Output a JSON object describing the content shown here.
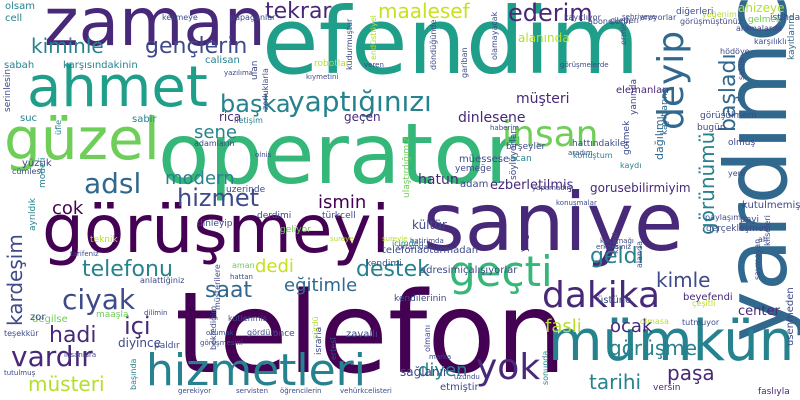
{
  "cloud": {
    "palette": {
      "purple": "#440154",
      "indigo": "#482878",
      "blue": "#3e4a89",
      "steel": "#31688e",
      "teal": "#26828e",
      "sea": "#1f9e89",
      "green": "#35b779",
      "lime": "#6ece58",
      "yellowgreen": "#b5de2b",
      "yellow": "#c8e020"
    },
    "words": [
      "operator",
      "efendim",
      "telefon",
      "görüşmeyi",
      "saniye",
      "yardımcı",
      "zaman",
      "ahmet",
      "güzel",
      "mümkün",
      "hizmetleri",
      "geçti",
      "insan",
      "deyip",
      "dakika",
      "yaptığınızı",
      "başladı",
      "maalesef",
      "ederim",
      "tekrar",
      "gençlerin",
      "kiminle",
      "başka",
      "adsl",
      "hizmet",
      "ciyak",
      "vardır",
      "içi",
      "yok",
      "destek",
      "telefonu",
      "saat",
      "geldi",
      "kimle",
      "görünümü",
      "kardeşim",
      "hadi",
      "müsteri",
      "görüşme",
      "tarihi",
      "paşa",
      "ocak",
      "fasli",
      "dedi",
      "eğitimle",
      "ismin",
      "modern",
      "cok",
      "sene",
      "diyen",
      "alanında",
      "müşteri",
      "dinlesene",
      "hatun",
      "ezberletilmiş",
      "gorusebilirmiyim",
      "ahizeye",
      "yeğenim",
      "istihdam",
      "gelmek",
      "geçen",
      "sabir",
      "rica",
      "iletişim",
      "konuştum",
      "dağılımı",
      "kaydı",
      "bugün",
      "olmuş",
      "aman",
      "beyefendi",
      "center",
      "elemanları",
      "kayıtlarına",
      "kayıtlarını",
      "tutmuyor",
      "görüşülmem",
      "usenmeden",
      "yüzük",
      "üstüne",
      "degilse",
      "maaşla",
      "cümlesi",
      "olsam",
      "cell",
      "sabah",
      "karşısındakinin",
      "calisan",
      "modeli",
      "serinlesin",
      "suc",
      "üfle",
      "ayrıldık",
      "zor",
      "teşekkür",
      "tutulmuş",
      "diyince",
      "paldır",
      "once",
      "zavallı",
      "israrla",
      "sağlanır",
      "etmiştir",
      "yogun",
      "kendilerinin",
      "adresimiçalışıyorlar",
      "telefonaoturmadan",
      "müessese",
      "yemeğe",
      "kendimi",
      "içimden",
      "kültür",
      "adam",
      "acan",
      "hattındakiler",
      "gormek",
      "gerçekleşmesi",
      "kutulmemiş",
      "payi",
      "ah",
      "yeni",
      "paylaşım",
      "diğerleri",
      "aramalarda",
      "görüşmüştünüz",
      "hödöye",
      "aroyorlar",
      "şehriyeye",
      "ermis",
      "abonelerin",
      "kayıtlıyor",
      "çileden",
      "papağanlar",
      "kesmeye",
      "kıymetini",
      "veren",
      "robotlar",
      "endüstriyel",
      "olamayacak",
      "kudurmuştur",
      "döndüğünde",
      "gariban",
      "yanında",
      "görüşmelerde",
      "şahısı",
      "karşılıklı",
      "ortamda",
      "kaçamağı",
      "konuşmalar",
      "aradım",
      "yapamadım",
      "haberim",
      "birşeyler",
      "söylüyorlar",
      "ulaştırdığımız",
      "olmasa",
      "çeşitli",
      "saymayan",
      "kliseleri",
      "sureyle",
      "hatirimda",
      "türkcell",
      "derdimi",
      "dinleyip",
      "uzerinde",
      "geliyor",
      "hattan",
      "sureye",
      "anlattiğiniz",
      "dilimin",
      "gerekiyor",
      "servisten",
      "öğrencilerin",
      "vehürkcelisteri",
      "marka",
      "uzundu",
      "başında",
      "sonunda",
      "versin",
      "faslıyla",
      "insanlara",
      "olmanı",
      "ertesi",
      "beklediğim",
      "tarifeniz",
      "teknik",
      "kanal",
      "alanda",
      "sürdü",
      "yazılıma",
      "ulan",
      "adamların",
      "olnis",
      "zorluklarla",
      "gördüm",
      "kutlenmis",
      "müsterilere",
      "okumak",
      "görüşmesini",
      "erkeksiniz",
      "aldığım",
      "ismini",
      "bulan",
      "ayda",
      "aynı",
      "ağlamak",
      "yenilemeniz",
      "gulecek",
      "kadar",
      "iyi"
    ]
  }
}
